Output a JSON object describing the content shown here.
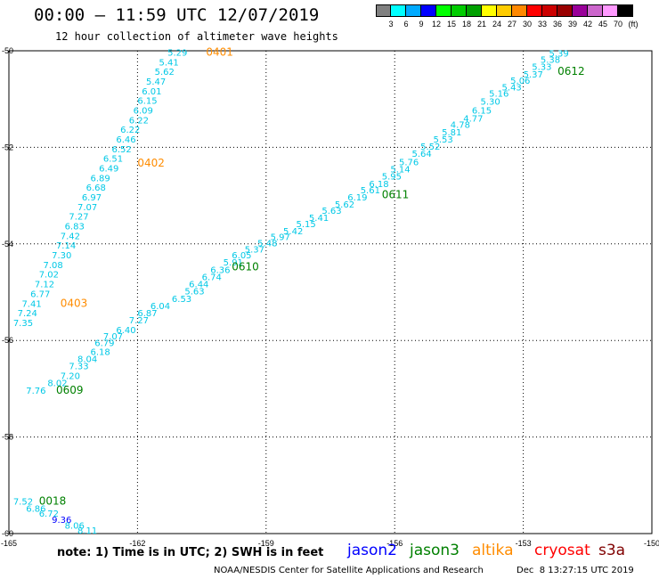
{
  "header": {
    "title": "00:00 — 11:59 UTC 12/07/2019",
    "subtitle": "12 hour collection of altimeter wave heights"
  },
  "legend": {
    "colors": [
      "#808080",
      "#00ffff",
      "#00aaff",
      "#0000ff",
      "#00ff00",
      "#00cc00",
      "#00a000",
      "#ffff00",
      "#ffcc00",
      "#ff8800",
      "#ff0000",
      "#cc0000",
      "#990000",
      "#990099",
      "#cc66cc",
      "#ff99ff",
      "#000000"
    ],
    "labels": [
      "3",
      "6",
      "9",
      "12",
      "15",
      "18",
      "21",
      "24",
      "27",
      "30",
      "33",
      "36",
      "39",
      "42",
      "45",
      "70",
      "(ft)"
    ]
  },
  "map": {
    "lon_labels": [
      "-165",
      "-162",
      "-159",
      "-156",
      "-153",
      "-150"
    ],
    "lat_labels": [
      "-50",
      "-52",
      "-54",
      "-56",
      "-58",
      "-60"
    ],
    "lon_range": [
      -165,
      -150
    ],
    "lat_range": [
      -50,
      -60
    ],
    "grid": "dotted"
  },
  "tracks": {
    "jason3_a": [
      [
        "7.76",
        -164.6,
        -57.1
      ],
      [
        "8.02",
        -164.1,
        -56.95
      ],
      [
        "7.20",
        -163.8,
        -56.8
      ],
      [
        "7.33",
        -163.6,
        -56.6
      ],
      [
        "8.04",
        -163.4,
        -56.45
      ],
      [
        "6.18",
        -163.1,
        -56.3
      ],
      [
        "6.79",
        -163.0,
        -56.12
      ],
      [
        "7.07",
        -162.8,
        -55.98
      ],
      [
        "6.40",
        -162.5,
        -55.85
      ],
      [
        "7.27",
        -162.2,
        -55.65
      ],
      [
        "6.87",
        -162.0,
        -55.5
      ],
      [
        "6.04",
        -161.7,
        -55.35
      ],
      [
        "6.53",
        -161.2,
        -55.2
      ],
      [
        "5.63",
        -160.9,
        -55.05
      ],
      [
        "6.44",
        -160.8,
        -54.9
      ],
      [
        "6.74",
        -160.5,
        -54.75
      ],
      [
        "6.36",
        -160.3,
        -54.6
      ],
      [
        "5.91",
        -160.0,
        -54.45
      ],
      [
        "6.05",
        -159.8,
        -54.3
      ],
      [
        "5.37",
        -159.5,
        -54.18
      ],
      [
        "5.48",
        -159.2,
        -54.05
      ],
      [
        "5.97",
        -158.9,
        -53.92
      ],
      [
        "5.42",
        -158.6,
        -53.8
      ],
      [
        "5.15",
        -158.3,
        -53.65
      ],
      [
        "5.41",
        -158.0,
        -53.52
      ],
      [
        "5.63",
        -157.7,
        -53.38
      ],
      [
        "5.62",
        -157.4,
        -53.25
      ],
      [
        "6.19",
        -157.1,
        -53.1
      ],
      [
        "5.61",
        -156.8,
        -52.95
      ],
      [
        "6.18",
        -156.6,
        -52.82
      ],
      [
        "5.95",
        -156.3,
        -52.67
      ],
      [
        "5.14",
        -156.1,
        -52.52
      ],
      [
        "5.76",
        -155.9,
        -52.37
      ],
      [
        "5.64",
        -155.6,
        -52.2
      ],
      [
        "5.52",
        -155.4,
        -52.05
      ],
      [
        "5.53",
        -155.1,
        -51.9
      ],
      [
        "5.81",
        -154.9,
        -51.75
      ],
      [
        "4.78",
        -154.7,
        -51.6
      ],
      [
        "4.77",
        -154.4,
        -51.47
      ],
      [
        "6.15",
        -154.2,
        -51.3
      ],
      [
        "5.30",
        -154.0,
        -51.12
      ],
      [
        "5.16",
        -153.8,
        -50.95
      ],
      [
        "5.43",
        -153.5,
        -50.82
      ],
      [
        "5.06",
        -153.3,
        -50.68
      ],
      [
        "5.37",
        -153.0,
        -50.55
      ],
      [
        "5.33",
        -152.8,
        -50.4
      ],
      [
        "5.38",
        -152.6,
        -50.25
      ],
      [
        "5.39",
        -152.4,
        -50.12
      ]
    ],
    "jason3_b": [
      [
        "5.29",
        -161.3,
        -50.1
      ],
      [
        "5.41",
        -161.5,
        -50.3
      ],
      [
        "5.62",
        -161.6,
        -50.5
      ],
      [
        "5.47",
        -161.8,
        -50.7
      ],
      [
        "6.01",
        -161.9,
        -50.9
      ],
      [
        "6.15",
        -162.0,
        -51.1
      ],
      [
        "6.09",
        -162.1,
        -51.3
      ],
      [
        "6.22",
        -162.2,
        -51.5
      ],
      [
        "6.22",
        -162.4,
        -51.7
      ],
      [
        "6.46",
        -162.5,
        -51.9
      ],
      [
        "6.52",
        -162.6,
        -52.1
      ],
      [
        "6.51",
        -162.8,
        -52.3
      ],
      [
        "6.49",
        -162.9,
        -52.5
      ],
      [
        "6.89",
        -163.1,
        -52.7
      ],
      [
        "6.68",
        -163.2,
        -52.9
      ],
      [
        "6.97",
        -163.3,
        -53.1
      ],
      [
        "7.07",
        -163.4,
        -53.3
      ],
      [
        "7.27",
        -163.6,
        -53.5
      ],
      [
        "6.83",
        -163.7,
        -53.7
      ],
      [
        "7.42",
        -163.8,
        -53.9
      ],
      [
        "7.14",
        -163.9,
        -54.1
      ],
      [
        "7.30",
        -164.0,
        -54.3
      ],
      [
        "7.08",
        -164.2,
        -54.5
      ],
      [
        "7.02",
        -164.3,
        -54.7
      ],
      [
        "7.12",
        -164.4,
        -54.9
      ],
      [
        "6.77",
        -164.5,
        -55.1
      ],
      [
        "7.41",
        -164.7,
        -55.3
      ],
      [
        "7.24",
        -164.8,
        -55.5
      ],
      [
        "7.35",
        -164.9,
        -55.7
      ]
    ],
    "jason3_c": [
      [
        "7.52",
        -164.9,
        -59.4
      ],
      [
        "6.86",
        -164.6,
        -59.55
      ],
      [
        "6.72",
        -164.3,
        -59.65
      ],
      [
        "9.36",
        -164.0,
        -59.78
      ],
      [
        "8.06",
        -163.7,
        -59.9
      ],
      [
        "8.11",
        -163.4,
        -60.0
      ]
    ]
  },
  "time_labels": [
    {
      "text": "0401",
      "sat": "altika",
      "lon": -160.4,
      "lat": -50.1
    },
    {
      "text": "0402",
      "sat": "altika",
      "lon": -162.0,
      "lat": -52.4
    },
    {
      "text": "0403",
      "sat": "altika",
      "lon": -163.8,
      "lat": -55.3
    },
    {
      "text": "0609",
      "sat": "jason3",
      "lon": -163.9,
      "lat": -57.1
    },
    {
      "text": "0610",
      "sat": "jason3",
      "lon": -159.8,
      "lat": -54.55
    },
    {
      "text": "0611",
      "sat": "jason3",
      "lon": -156.3,
      "lat": -53.05
    },
    {
      "text": "0612",
      "sat": "jason3",
      "lon": -152.2,
      "lat": -50.5
    },
    {
      "text": "0018",
      "sat": "jason3",
      "lon": -164.3,
      "lat": -59.4
    }
  ],
  "colors": {
    "swh": "#00c8e6",
    "swh_blue": "#0000ff",
    "jason2": "#0000ff",
    "jason3": "#008000",
    "altika": "#ff8c00",
    "cryosat": "#ff0000",
    "s3a": "#800000"
  },
  "satellites": [
    {
      "name": "jason2",
      "color": "#0000ff"
    },
    {
      "name": "jason3",
      "color": "#008000"
    },
    {
      "name": "altika",
      "color": "#ff8c00"
    },
    {
      "name": "cryosat",
      "color": "#ff0000"
    },
    {
      "name": "s3a",
      "color": "#800000"
    }
  ],
  "footer": {
    "note": "note: 1) Time is in UTC; 2) SWH is in feet",
    "credit": "NOAA/NESDIS Center for Satellite Applications and Research",
    "timestamp": "Dec  8 13:27:15 UTC 2019"
  }
}
